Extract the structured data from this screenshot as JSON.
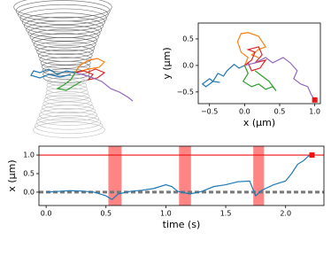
{
  "chart_data": [
    {
      "type": "line",
      "xlabel": "x (μm)",
      "ylabel": "y (μm)",
      "xlim": [
        -0.66,
        1.08
      ],
      "ylim": [
        -0.72,
        0.8
      ],
      "xticks": [
        {
          "value": -0.5,
          "label": "−0.5"
        },
        {
          "value": 0,
          "label": "0.0"
        },
        {
          "value": 0.5,
          "label": "0.5"
        },
        {
          "value": 1,
          "label": "1.0"
        }
      ],
      "yticks": [
        {
          "value": -0.5,
          "label": "−0.5"
        },
        {
          "value": 0,
          "label": "0.0"
        },
        {
          "value": 0.5,
          "label": "0.5"
        }
      ],
      "series": [
        {
          "color": "#1f77b4",
          "x": [
            0,
            -0.08,
            -0.15,
            -0.25,
            -0.3,
            -0.38,
            -0.45,
            -0.5,
            -0.6,
            -0.55,
            -0.45,
            -0.35
          ],
          "y": [
            0,
            -0.05,
            0.02,
            -0.1,
            -0.2,
            -0.15,
            -0.3,
            -0.25,
            -0.35,
            -0.4,
            -0.3,
            -0.32
          ]
        },
        {
          "color": "#ff7f0e",
          "x": [
            0,
            0.05,
            -0.05,
            -0.1,
            -0.05,
            0.05,
            0.2,
            0.25,
            0.3,
            0.2,
            0.1,
            0.2
          ],
          "y": [
            0,
            0.15,
            0.25,
            0.45,
            0.6,
            0.62,
            0.55,
            0.45,
            0.35,
            0.3,
            0.2,
            0.15
          ]
        },
        {
          "color": "#2ca02c",
          "x": [
            0,
            0.05,
            -0.02,
            0.1,
            0.2,
            0.3,
            0.4,
            0.45,
            0.35,
            0.25,
            0.15
          ],
          "y": [
            0,
            -0.15,
            -0.3,
            -0.4,
            -0.35,
            -0.45,
            -0.4,
            -0.48,
            -0.3,
            -0.2,
            -0.1
          ]
        },
        {
          "color": "#d62728",
          "x": [
            0,
            0.1,
            0.15,
            0.05,
            0.2,
            0.25,
            0.15,
            0.3,
            0.22,
            0.1,
            0.05
          ],
          "y": [
            0,
            0.1,
            0.25,
            0.3,
            0.35,
            0.2,
            0.05,
            0.1,
            -0.05,
            -0.1,
            0.05
          ]
        },
        {
          "color": "#9467bd",
          "x": [
            0,
            0.15,
            0.3,
            0.4,
            0.55,
            0.65,
            0.75,
            0.7,
            0.8,
            0.9,
            0.95,
            1.0
          ],
          "y": [
            0,
            0.05,
            0.15,
            0.05,
            0.15,
            0.05,
            -0.1,
            -0.25,
            -0.35,
            -0.4,
            -0.55,
            -0.65
          ]
        }
      ],
      "markers": [
        {
          "x": 1.0,
          "y": -0.65,
          "color": "#ee1111"
        }
      ]
    },
    {
      "type": "line",
      "xlabel": "time (s)",
      "ylabel": "x (μm)",
      "xlim": [
        -0.06,
        2.32
      ],
      "ylim": [
        -0.36,
        1.24
      ],
      "xticks": [
        {
          "value": 0,
          "label": "0.0"
        },
        0.5,
        {
          "value": 1,
          "label": "1.0"
        },
        1.5,
        {
          "value": 2,
          "label": "2.0"
        }
      ],
      "yticks": [
        {
          "value": 0,
          "label": "0.0"
        },
        0.5,
        {
          "value": 1,
          "label": "1.0"
        }
      ],
      "spans": [
        [
          0.52,
          0.63
        ],
        [
          1.11,
          1.21
        ],
        [
          1.73,
          1.82
        ]
      ],
      "hlines": [
        {
          "y": 1.0,
          "color": "#ee1111",
          "dashed": false
        },
        {
          "y": 0,
          "color": "#777777",
          "dashed": true
        }
      ],
      "series": [
        {
          "color": "#1f77b4",
          "x": [
            0,
            0.1,
            0.2,
            0.3,
            0.4,
            0.5,
            0.55,
            0.6,
            0.7,
            0.8,
            0.9,
            1.0,
            1.05,
            1.1,
            1.2,
            1.3,
            1.4,
            1.5,
            1.6,
            1.7,
            1.75,
            1.8,
            1.9,
            2.0,
            2.05,
            2.1,
            2.15,
            2.2
          ],
          "y": [
            0,
            0.02,
            0.04,
            0.03,
            0,
            -0.1,
            -0.2,
            -0.05,
            0.02,
            0.05,
            0.1,
            0.2,
            0.15,
            0.02,
            -0.05,
            0.02,
            0.15,
            0.2,
            0.28,
            0.3,
            -0.1,
            0.05,
            0.2,
            0.3,
            0.5,
            0.75,
            0.85,
            1.0
          ]
        }
      ],
      "markers": [
        {
          "x": 2.22,
          "y": 1.0,
          "color": "#ee1111"
        }
      ]
    }
  ]
}
